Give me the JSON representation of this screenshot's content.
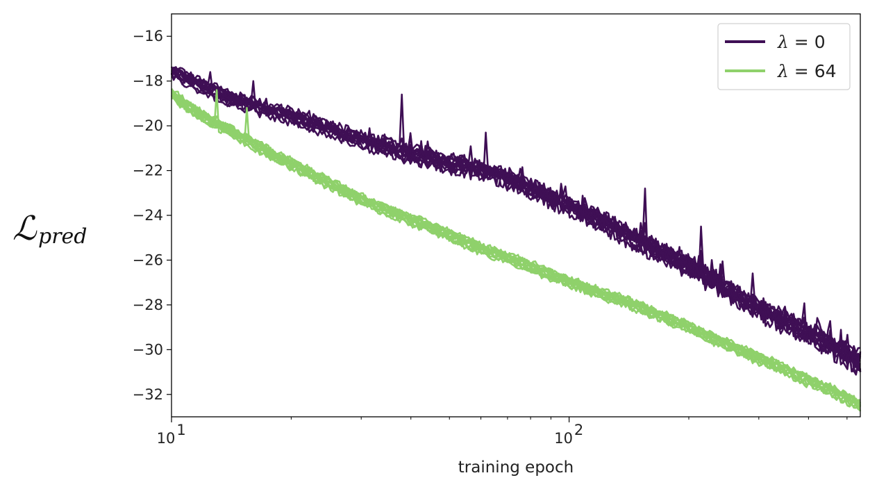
{
  "chart_data": {
    "type": "line",
    "title": "",
    "xlabel": "training epoch",
    "ylabel": "ℒ",
    "ylabel_subscript": "pred",
    "xscale": "log",
    "xlim": [
      10,
      540
    ],
    "ylim": [
      -33,
      -15
    ],
    "x_ticks": [
      {
        "value": 10,
        "base": "10",
        "exp": "1"
      },
      {
        "value": 100,
        "base": "10",
        "exp": "2"
      }
    ],
    "y_ticks": [
      -16,
      -18,
      -20,
      -22,
      -24,
      -26,
      -28,
      -30,
      -32
    ],
    "y_tick_labels": [
      "−16",
      "−18",
      "−20",
      "−22",
      "−24",
      "−26",
      "−28",
      "−30",
      "−32"
    ],
    "grid": false,
    "legend_position": "top-right",
    "series": [
      {
        "name": "λ = 0",
        "name_symbol": "λ",
        "name_value": "= 0",
        "color": "#3f0f55",
        "x": [
          10,
          12,
          14,
          16,
          18,
          20,
          25,
          30,
          35,
          40,
          50,
          60,
          70,
          80,
          100,
          120,
          150,
          180,
          200,
          250,
          300,
          350,
          400,
          450,
          500,
          540
        ],
        "values": [
          -17.6,
          -18.3,
          -18.8,
          -19.1,
          -19.4,
          -19.6,
          -20.2,
          -20.7,
          -21.0,
          -21.3,
          -21.7,
          -22.0,
          -22.4,
          -22.8,
          -23.6,
          -24.3,
          -25.2,
          -25.9,
          -26.3,
          -27.4,
          -28.2,
          -28.8,
          -29.3,
          -29.8,
          -30.3,
          -30.6
        ],
        "spread": 0.55,
        "spikes": [
          {
            "x": 16,
            "y": -18.0
          },
          {
            "x": 38,
            "y": -18.6
          },
          {
            "x": 62,
            "y": -20.3
          },
          {
            "x": 155,
            "y": -22.8
          },
          {
            "x": 215,
            "y": -24.5
          }
        ]
      },
      {
        "name": "λ = 64",
        "name_symbol": "λ",
        "name_value": "= 64",
        "color": "#8fd16b",
        "x": [
          10,
          12,
          14,
          16,
          18,
          20,
          25,
          30,
          35,
          40,
          50,
          60,
          70,
          80,
          100,
          120,
          150,
          180,
          200,
          250,
          300,
          350,
          400,
          450,
          500,
          540
        ],
        "values": [
          -18.6,
          -19.6,
          -20.2,
          -20.8,
          -21.3,
          -21.7,
          -22.6,
          -23.3,
          -23.8,
          -24.2,
          -24.9,
          -25.5,
          -25.9,
          -26.3,
          -27.0,
          -27.5,
          -28.1,
          -28.7,
          -29.0,
          -29.8,
          -30.4,
          -30.9,
          -31.4,
          -31.8,
          -32.2,
          -32.5
        ],
        "spread": 0.4,
        "spikes": [
          {
            "x": 13,
            "y": -18.4
          },
          {
            "x": 15.5,
            "y": -19.2
          }
        ]
      }
    ]
  }
}
